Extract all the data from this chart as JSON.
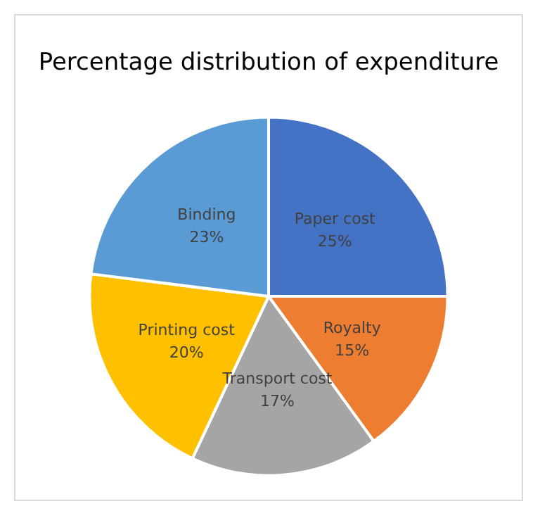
{
  "chart_data": {
    "type": "pie",
    "title": "Percentage distribution of expenditure",
    "categories": [
      "Paper cost",
      "Royalty",
      "Transport cost",
      "Printing cost",
      "Binding"
    ],
    "values": [
      25,
      15,
      17,
      20,
      23
    ],
    "value_labels": [
      "25%",
      "15%",
      "17%",
      "20%",
      "23%"
    ],
    "colors": [
      "#4472c4",
      "#ed7d31",
      "#a5a5a5",
      "#ffc000",
      "#5b9bd5"
    ],
    "legend": false
  }
}
